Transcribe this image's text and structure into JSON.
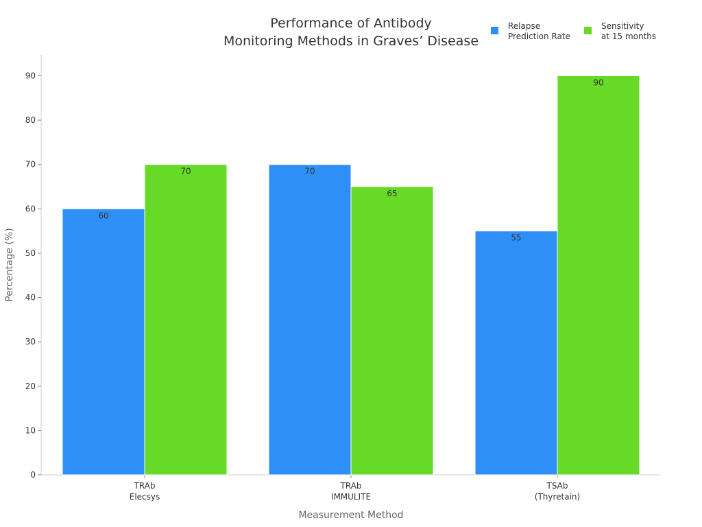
{
  "chart_data": {
    "type": "bar",
    "title": [
      "Performance of Antibody",
      "Monitoring Methods in Graves’ Disease"
    ],
    "xlabel": "Measurement Method",
    "ylabel": "Percentage (%)",
    "categories": [
      [
        "TRAb",
        "Elecsys"
      ],
      [
        "TRAb",
        "IMMULITE"
      ],
      [
        "TSAb",
        "(Thyretain)"
      ]
    ],
    "series": [
      {
        "name": [
          "Relapse",
          "Prediction Rate"
        ],
        "color": "#2F8FF8",
        "values": [
          60,
          70,
          55
        ]
      },
      {
        "name": [
          "Sensitivity",
          "at 15 months"
        ],
        "color": "#66DA26",
        "values": [
          70,
          65,
          90
        ]
      }
    ],
    "ylim": [
      0,
      95
    ],
    "yticks": [
      0,
      10,
      20,
      30,
      40,
      50,
      60,
      70,
      80,
      90
    ],
    "grid": false,
    "legend_position": "top-right"
  }
}
